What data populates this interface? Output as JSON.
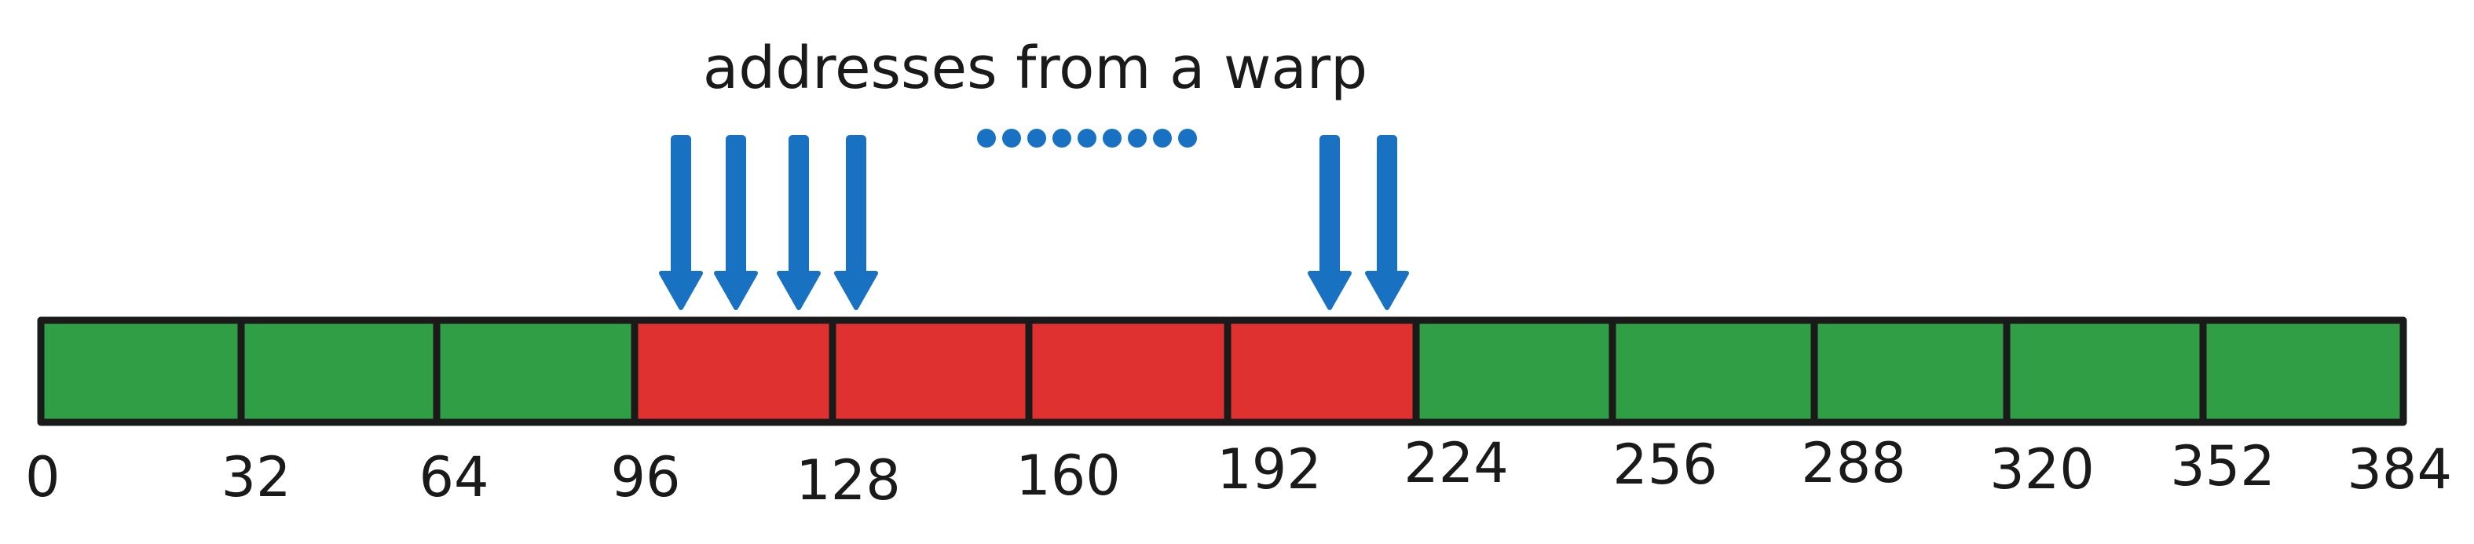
{
  "title": "addresses from a warp",
  "colors": {
    "coalesced": "#2f9e44",
    "accessed": "#e03131",
    "arrow": "#1971c2",
    "outline": "#1a1a1a"
  },
  "segments": [
    {
      "start": 0,
      "state": "coalesced"
    },
    {
      "start": 32,
      "state": "coalesced"
    },
    {
      "start": 64,
      "state": "coalesced"
    },
    {
      "start": 96,
      "state": "accessed"
    },
    {
      "start": 128,
      "state": "accessed"
    },
    {
      "start": 160,
      "state": "accessed"
    },
    {
      "start": 192,
      "state": "accessed"
    },
    {
      "start": 224,
      "state": "coalesced"
    },
    {
      "start": 256,
      "state": "coalesced"
    },
    {
      "start": 288,
      "state": "coalesced"
    },
    {
      "start": 320,
      "state": "coalesced"
    },
    {
      "start": 352,
      "state": "coalesced"
    }
  ],
  "ticks": [
    "0",
    "32",
    "64",
    "96",
    "128",
    "160",
    "192",
    "224",
    "256",
    "288",
    "320",
    "352",
    "384"
  ],
  "arrow_icon": "down-arrow-icon",
  "ellipsis_icon": "dots-icon"
}
